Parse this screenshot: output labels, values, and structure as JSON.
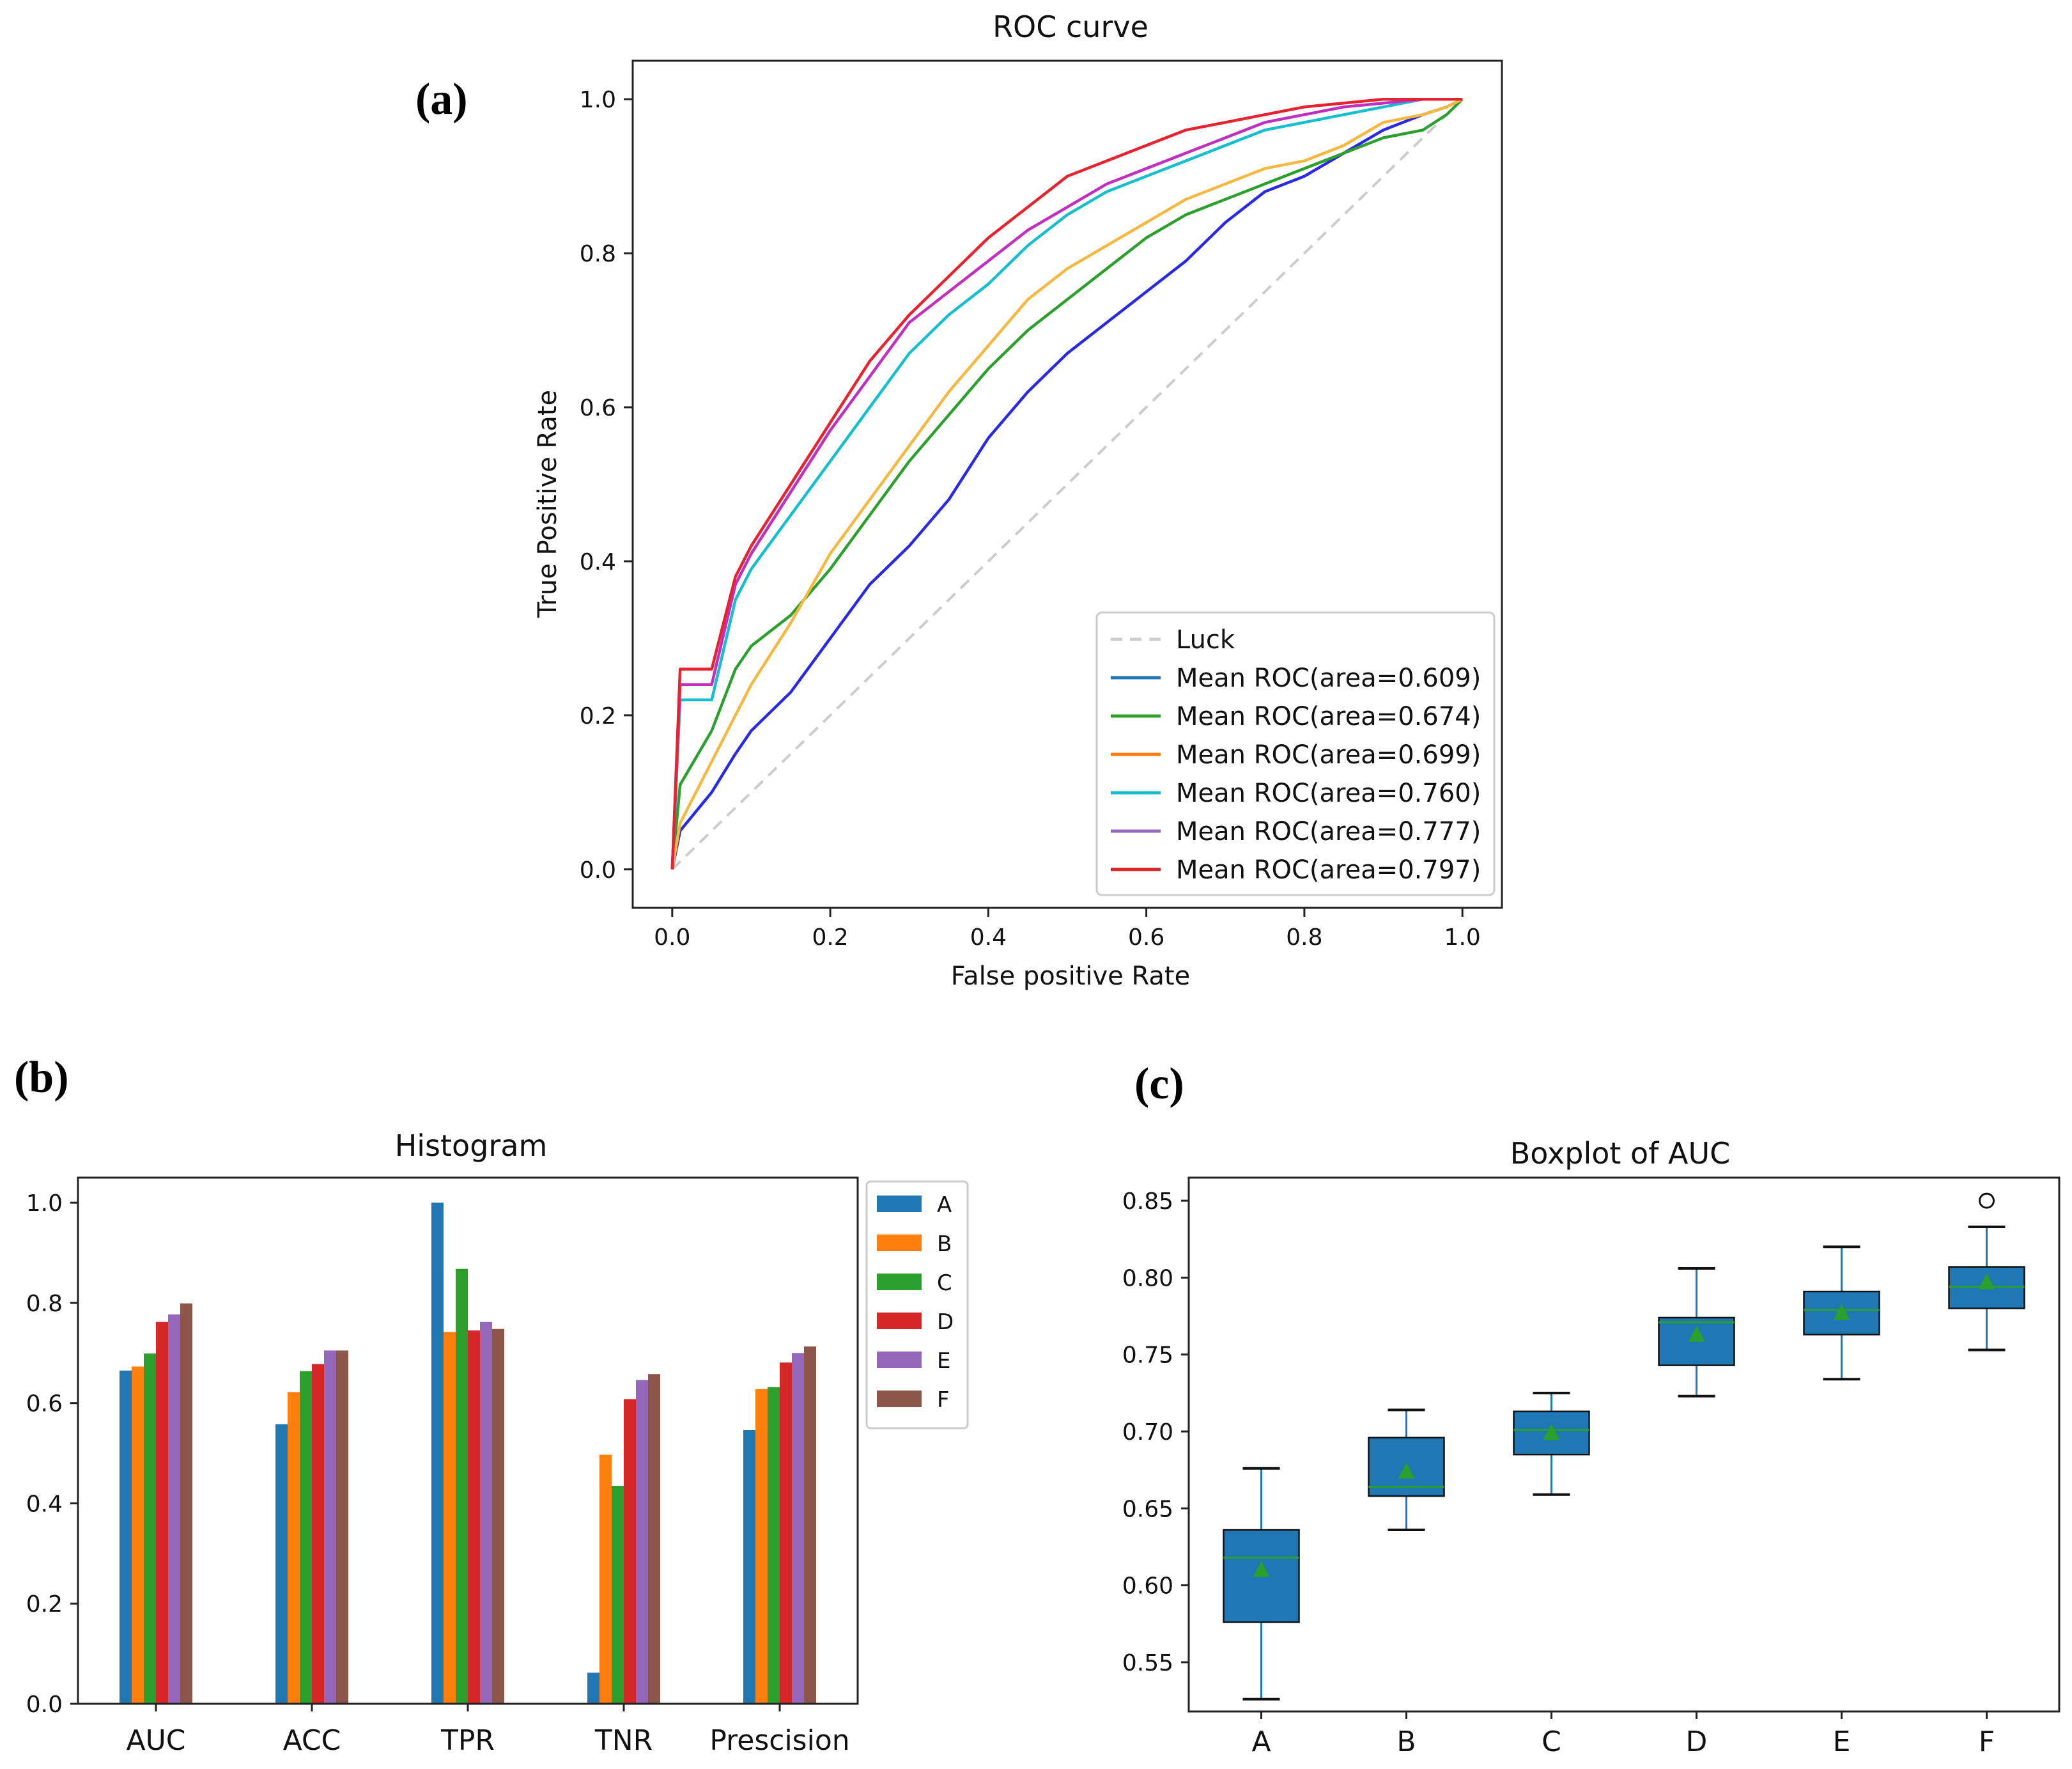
{
  "panels": {
    "a": "(a)",
    "b": "(b)",
    "c": "(c)"
  },
  "chart_data": [
    {
      "type": "line",
      "title": "ROC curve",
      "xlabel": "False positive Rate",
      "ylabel": "True Positive  Rate",
      "xlim": [
        -0.05,
        1.05
      ],
      "ylim": [
        -0.05,
        1.05
      ],
      "xticks": [
        "0.0",
        "0.2",
        "0.4",
        "0.6",
        "0.8",
        "1.0"
      ],
      "yticks": [
        "0.0",
        "0.2",
        "0.4",
        "0.6",
        "0.8",
        "1.0"
      ],
      "legend_position": "lower-right",
      "luck": {
        "name": "Luck",
        "color": "#cccccc",
        "x": [
          0,
          1
        ],
        "y": [
          0,
          1
        ]
      },
      "series": [
        {
          "name": "Mean ROC(area=0.609)",
          "legend_color": "#1f77b4",
          "color": "#2a2ae6",
          "x": [
            0,
            0.01,
            0.05,
            0.08,
            0.1,
            0.15,
            0.2,
            0.25,
            0.3,
            0.35,
            0.4,
            0.45,
            0.5,
            0.55,
            0.6,
            0.65,
            0.7,
            0.75,
            0.8,
            0.85,
            0.9,
            0.95,
            0.98,
            1.0
          ],
          "y": [
            0,
            0.05,
            0.1,
            0.15,
            0.18,
            0.23,
            0.3,
            0.37,
            0.42,
            0.48,
            0.56,
            0.62,
            0.67,
            0.71,
            0.75,
            0.79,
            0.84,
            0.88,
            0.9,
            0.93,
            0.96,
            0.98,
            0.99,
            1.0
          ]
        },
        {
          "name": "Mean ROC(area=0.674)",
          "legend_color": "#2ca02c",
          "color": "#2ca02c",
          "x": [
            0,
            0.01,
            0.05,
            0.08,
            0.1,
            0.15,
            0.2,
            0.25,
            0.3,
            0.35,
            0.4,
            0.45,
            0.5,
            0.55,
            0.6,
            0.65,
            0.7,
            0.75,
            0.8,
            0.85,
            0.9,
            0.95,
            0.98,
            1.0
          ],
          "y": [
            0,
            0.11,
            0.18,
            0.26,
            0.29,
            0.33,
            0.39,
            0.46,
            0.53,
            0.59,
            0.65,
            0.7,
            0.74,
            0.78,
            0.82,
            0.85,
            0.87,
            0.89,
            0.91,
            0.93,
            0.95,
            0.96,
            0.98,
            1.0
          ]
        },
        {
          "name": "Mean ROC(area=0.699)",
          "legend_color": "#ff7f0e",
          "color": "#f5b942",
          "x": [
            0,
            0.01,
            0.05,
            0.08,
            0.1,
            0.15,
            0.2,
            0.25,
            0.3,
            0.35,
            0.4,
            0.45,
            0.5,
            0.55,
            0.6,
            0.65,
            0.7,
            0.75,
            0.8,
            0.85,
            0.9,
            0.95,
            0.98,
            1.0
          ],
          "y": [
            0,
            0.06,
            0.14,
            0.2,
            0.24,
            0.32,
            0.41,
            0.48,
            0.55,
            0.62,
            0.68,
            0.74,
            0.78,
            0.81,
            0.84,
            0.87,
            0.89,
            0.91,
            0.92,
            0.94,
            0.97,
            0.98,
            0.99,
            1.0
          ]
        },
        {
          "name": "Mean ROC(area=0.760)",
          "legend_color": "#17becf",
          "color": "#17becf",
          "x": [
            0,
            0.01,
            0.05,
            0.08,
            0.1,
            0.15,
            0.2,
            0.25,
            0.3,
            0.35,
            0.4,
            0.45,
            0.5,
            0.55,
            0.6,
            0.65,
            0.7,
            0.75,
            0.8,
            0.85,
            0.9,
            0.95,
            1.0
          ],
          "y": [
            0,
            0.22,
            0.22,
            0.35,
            0.39,
            0.46,
            0.53,
            0.6,
            0.67,
            0.72,
            0.76,
            0.81,
            0.85,
            0.88,
            0.9,
            0.92,
            0.94,
            0.96,
            0.97,
            0.98,
            0.99,
            1.0,
            1.0
          ]
        },
        {
          "name": "Mean ROC(area=0.777)",
          "legend_color": "#9467bd",
          "color": "#c030c0",
          "x": [
            0,
            0.01,
            0.05,
            0.08,
            0.1,
            0.15,
            0.2,
            0.25,
            0.3,
            0.35,
            0.4,
            0.45,
            0.5,
            0.55,
            0.6,
            0.65,
            0.7,
            0.75,
            0.8,
            0.85,
            0.9,
            0.95,
            1.0
          ],
          "y": [
            0,
            0.24,
            0.24,
            0.37,
            0.41,
            0.49,
            0.57,
            0.64,
            0.71,
            0.75,
            0.79,
            0.83,
            0.86,
            0.89,
            0.91,
            0.93,
            0.95,
            0.97,
            0.98,
            0.99,
            0.995,
            1.0,
            1.0
          ]
        },
        {
          "name": "Mean ROC(area=0.797)",
          "legend_color": "#d62728",
          "color": "#e8222e",
          "x": [
            0,
            0.01,
            0.05,
            0.08,
            0.1,
            0.15,
            0.2,
            0.25,
            0.3,
            0.35,
            0.4,
            0.45,
            0.5,
            0.55,
            0.6,
            0.65,
            0.7,
            0.75,
            0.8,
            0.85,
            0.9,
            0.95,
            1.0
          ],
          "y": [
            0,
            0.26,
            0.26,
            0.38,
            0.42,
            0.5,
            0.58,
            0.66,
            0.72,
            0.77,
            0.82,
            0.86,
            0.9,
            0.92,
            0.94,
            0.96,
            0.97,
            0.98,
            0.99,
            0.995,
            1.0,
            1.0,
            1.0
          ]
        }
      ]
    },
    {
      "type": "bar",
      "title": "Histogram",
      "ylim": [
        0,
        1.05
      ],
      "yticks": [
        "0.0",
        "0.2",
        "0.4",
        "0.6",
        "0.8",
        "1.0"
      ],
      "categories": [
        "AUC",
        "ACC",
        "TPR",
        "TNR",
        "Prescision"
      ],
      "legend_position": "outside-right",
      "series": [
        {
          "name": "A",
          "color": "#1f77b4",
          "values": [
            0.665,
            0.558,
            1.0,
            0.062,
            0.546
          ]
        },
        {
          "name": "B",
          "color": "#ff7f0e",
          "values": [
            0.673,
            0.622,
            0.742,
            0.497,
            0.628
          ]
        },
        {
          "name": "C",
          "color": "#2ca02c",
          "values": [
            0.699,
            0.664,
            0.868,
            0.435,
            0.632
          ]
        },
        {
          "name": "D",
          "color": "#d62728",
          "values": [
            0.762,
            0.678,
            0.745,
            0.608,
            0.681
          ]
        },
        {
          "name": "E",
          "color": "#9467bd",
          "values": [
            0.777,
            0.705,
            0.762,
            0.646,
            0.7
          ]
        },
        {
          "name": "F",
          "color": "#8c564b",
          "values": [
            0.799,
            0.705,
            0.748,
            0.658,
            0.713
          ]
        }
      ]
    },
    {
      "type": "box",
      "title": "Boxplot of AUC",
      "ylim": [
        0.518,
        0.865
      ],
      "yticks": [
        "0.55",
        "0.60",
        "0.65",
        "0.70",
        "0.75",
        "0.80",
        "0.85"
      ],
      "categories": [
        "A",
        "B",
        "C",
        "D",
        "E",
        "F"
      ],
      "box_color": "#1f77b4",
      "median_color": "#2ca02c",
      "mean_color": "#2ca02c",
      "boxes": [
        {
          "whislo": 0.526,
          "q1": 0.576,
          "med": 0.618,
          "q3": 0.636,
          "whishi": 0.676,
          "mean": 0.61,
          "fliers": []
        },
        {
          "whislo": 0.636,
          "q1": 0.658,
          "med": 0.664,
          "q3": 0.696,
          "whishi": 0.714,
          "mean": 0.674,
          "fliers": []
        },
        {
          "whislo": 0.659,
          "q1": 0.685,
          "med": 0.701,
          "q3": 0.713,
          "whishi": 0.725,
          "mean": 0.699,
          "fliers": []
        },
        {
          "whislo": 0.723,
          "q1": 0.743,
          "med": 0.771,
          "q3": 0.774,
          "whishi": 0.806,
          "mean": 0.763,
          "fliers": []
        },
        {
          "whislo": 0.734,
          "q1": 0.763,
          "med": 0.779,
          "q3": 0.791,
          "whishi": 0.82,
          "mean": 0.777,
          "fliers": []
        },
        {
          "whislo": 0.753,
          "q1": 0.78,
          "med": 0.794,
          "q3": 0.807,
          "whishi": 0.833,
          "mean": 0.797,
          "fliers": [
            0.85
          ]
        }
      ]
    }
  ]
}
